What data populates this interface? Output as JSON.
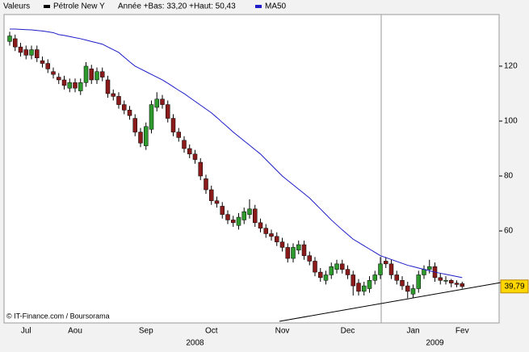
{
  "chart_data": {
    "type": "candlestick",
    "legend_title": "Valeurs",
    "legend_note": "Année +Bas: 33,20 +Haut: 50,43",
    "source": "© IT-Finance.com / Boursorama",
    "categories": [
      null,
      null,
      null,
      "Jul",
      null,
      null,
      null,
      null,
      null,
      null,
      null,
      null,
      "Aou",
      null,
      null,
      null,
      null,
      null,
      null,
      null,
      null,
      null,
      null,
      null,
      null,
      "Sep",
      null,
      null,
      null,
      null,
      null,
      null,
      null,
      null,
      null,
      null,
      null,
      "Oct",
      null,
      null,
      null,
      null,
      null,
      null,
      null,
      null,
      null,
      null,
      null,
      null,
      "Nov",
      null,
      null,
      null,
      null,
      null,
      null,
      null,
      null,
      null,
      null,
      null,
      "Dec",
      null,
      null,
      null,
      null,
      null,
      null,
      null,
      null,
      null,
      null,
      null,
      "Jan",
      null,
      null,
      null,
      null,
      null,
      null,
      null,
      null,
      "Fev"
    ],
    "years": [
      null,
      null,
      null,
      null,
      null,
      null,
      null,
      null,
      null,
      null,
      null,
      null,
      null,
      null,
      null,
      null,
      null,
      null,
      null,
      null,
      null,
      null,
      null,
      null,
      null,
      null,
      null,
      null,
      null,
      null,
      null,
      null,
      null,
      null,
      "2008",
      null,
      null,
      null,
      null,
      null,
      null,
      null,
      null,
      null,
      null,
      null,
      null,
      null,
      null,
      null,
      null,
      null,
      null,
      null,
      null,
      null,
      null,
      null,
      null,
      null,
      null,
      null,
      null,
      null,
      null,
      null,
      null,
      null,
      null,
      null,
      null,
      null,
      null,
      null,
      null,
      null,
      null,
      null,
      "2009",
      null,
      null,
      null,
      null,
      null
    ],
    "series": [
      {
        "name": "Pétrole New Y",
        "color": "#000000",
        "up_color": "#2e9a2e",
        "down_color": "#8b1a1a",
        "open": [
          129,
          130,
          127,
          126,
          124,
          126,
          122,
          121,
          118,
          116,
          115,
          112,
          114,
          111,
          114,
          119,
          115,
          118,
          115,
          110,
          109,
          106,
          104,
          101,
          96,
          91,
          97,
          105,
          108,
          106,
          101,
          96,
          93,
          90,
          88,
          85,
          79,
          75,
          71,
          69,
          66,
          64,
          62,
          64,
          66,
          68,
          63,
          61,
          59,
          58,
          56,
          54,
          50,
          53,
          55,
          51,
          49,
          45,
          42,
          44,
          46,
          48,
          46,
          44,
          41,
          38,
          39,
          42,
          44,
          49,
          48,
          44,
          42,
          40,
          37,
          39,
          44,
          46,
          47,
          43,
          42,
          42,
          41,
          40.8
        ],
        "high": [
          132.5,
          131.5,
          128.5,
          127.5,
          127.5,
          127.5,
          123.5,
          122.5,
          119.5,
          117.5,
          116.5,
          115.5,
          115.5,
          115.5,
          121.5,
          120.5,
          119.5,
          119.5,
          116.5,
          111.5,
          110.5,
          107.5,
          105.5,
          102.5,
          97.5,
          99.5,
          107.5,
          110.5,
          109.5,
          107.5,
          102.5,
          97.5,
          94.5,
          91.5,
          89.5,
          86.5,
          80.5,
          76.5,
          72.5,
          70.5,
          67.5,
          65.5,
          66.5,
          68.5,
          71.5,
          69.5,
          64.5,
          62.5,
          60.5,
          59.5,
          57.5,
          55.5,
          55.5,
          56.5,
          56.5,
          52.5,
          50.5,
          46.5,
          45.5,
          48.5,
          49.5,
          49.5,
          47.5,
          45.5,
          42.5,
          41.5,
          43.5,
          45.5,
          50.5,
          50.5,
          49.5,
          45.5,
          43.5,
          41.5,
          40.5,
          45.5,
          47.5,
          49.5,
          48.5,
          44.5,
          43.5,
          42.5,
          42,
          41.5
        ],
        "low": [
          127.5,
          125.5,
          123.5,
          122.5,
          122.5,
          121.5,
          119.5,
          117.5,
          115.5,
          113.5,
          111.5,
          110.5,
          110.5,
          109.5,
          112.5,
          113.5,
          113.5,
          114.5,
          108.5,
          107.5,
          104.5,
          102.5,
          100.5,
          94.5,
          90.5,
          89.5,
          95.5,
          103.5,
          104.5,
          99.5,
          94.5,
          92.5,
          88.5,
          86.5,
          84.5,
          78.5,
          73.5,
          69.5,
          68.5,
          64.5,
          62.5,
          61.5,
          60.5,
          62.5,
          64.5,
          61.5,
          59.5,
          57.5,
          56.5,
          54.5,
          52.5,
          48.5,
          48.5,
          51.5,
          49.5,
          47.5,
          43.5,
          41.5,
          40.5,
          42.5,
          44.5,
          44.5,
          42.5,
          36.5,
          36.5,
          36.5,
          37.5,
          40.5,
          42.5,
          46.5,
          42.5,
          40.5,
          38.5,
          35.5,
          35.5,
          37.5,
          42.5,
          44.5,
          41.5,
          40.5,
          40.5,
          39.5,
          39.5,
          39
        ],
        "close": [
          131,
          127,
          125,
          124,
          126,
          123,
          121,
          119,
          117,
          115,
          113,
          114,
          112,
          114,
          120,
          115,
          118,
          116,
          110,
          109,
          106,
          104,
          102,
          96,
          92,
          98,
          106,
          108,
          106,
          101,
          96,
          94,
          90,
          88,
          86,
          80,
          75,
          71,
          70,
          66,
          64,
          63,
          65,
          67,
          68,
          63,
          61,
          59,
          58,
          56,
          54,
          50,
          54,
          55,
          51,
          49,
          45,
          43,
          44,
          47,
          48,
          46,
          44,
          40,
          38,
          40,
          42,
          44,
          48,
          48,
          44,
          42,
          40,
          38,
          39,
          44,
          46,
          47,
          43,
          42,
          42,
          41,
          40.5,
          39.79
        ],
        "last_label": "39,79"
      },
      {
        "name": "MA50",
        "color": "#1c1cc8",
        "values": [
          133.5,
          133.5,
          133.4,
          133.3,
          133.2,
          133,
          132.8,
          132.5,
          132.2,
          131.5,
          131.2,
          130.8,
          130.4,
          130,
          129.5,
          129,
          128.5,
          128,
          127,
          126,
          125,
          123.3,
          121.6,
          120,
          119,
          118,
          117,
          116,
          115,
          113.8,
          112.5,
          111.2,
          110,
          108.6,
          107.2,
          105.8,
          104.4,
          103,
          101.3,
          99.5,
          97.8,
          96,
          94.4,
          92.8,
          91.2,
          89.6,
          88,
          86,
          84,
          82,
          80,
          78.4,
          76.8,
          75.2,
          73.6,
          72,
          70,
          68,
          66,
          64,
          62.2,
          60.4,
          58.7,
          57,
          55.8,
          54.6,
          53.4,
          52.2,
          51,
          50.3,
          49.6,
          48.9,
          48.2,
          47.5,
          47,
          46.5,
          46,
          45.5,
          45,
          44.6,
          44.2,
          43.8,
          43.4,
          43
        ]
      }
    ],
    "ylim": [
      26.5,
      138.8
    ],
    "yticks": [
      60,
      80,
      100,
      120
    ],
    "grid": false
  }
}
